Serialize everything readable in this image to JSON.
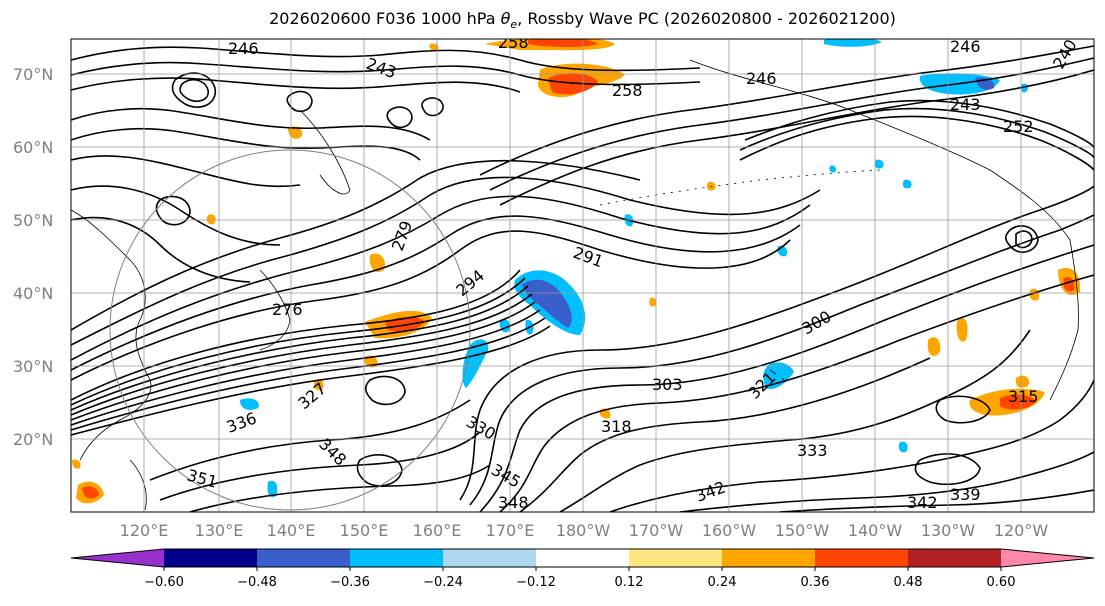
{
  "title": {
    "run": "2026020600",
    "forecast_hour": "F036",
    "level": "1000 hPa",
    "variable_symbol": "θ",
    "variable_subscript": "e",
    "analysis": ", Rossby Wave PC (2026020800 - 2026021200)"
  },
  "map": {
    "lat_labels": [
      "70°N",
      "60°N",
      "50°N",
      "40°N",
      "30°N",
      "20°N"
    ],
    "lon_labels": [
      "120°E",
      "130°E",
      "140°E",
      "150°E",
      "160°E",
      "170°E",
      "180°W",
      "170°W",
      "160°W",
      "150°W",
      "140°W",
      "130°W",
      "120°W"
    ],
    "contour_labels": [
      {
        "text": "246",
        "name": "contour-label-246-a"
      },
      {
        "text": "258",
        "name": "contour-label-258-a"
      },
      {
        "text": "246",
        "name": "contour-label-246-b"
      },
      {
        "text": "240",
        "name": "contour-label-240"
      },
      {
        "text": "243",
        "name": "contour-label-243-a"
      },
      {
        "text": "246",
        "name": "contour-label-246-c"
      },
      {
        "text": "258",
        "name": "contour-label-258-b"
      },
      {
        "text": "243",
        "name": "contour-label-243-b"
      },
      {
        "text": "252",
        "name": "contour-label-252"
      },
      {
        "text": "279",
        "name": "contour-label-279"
      },
      {
        "text": "291",
        "name": "contour-label-291"
      },
      {
        "text": "294",
        "name": "contour-label-294"
      },
      {
        "text": "276",
        "name": "contour-label-276"
      },
      {
        "text": "300",
        "name": "contour-label-300"
      },
      {
        "text": "303",
        "name": "contour-label-303"
      },
      {
        "text": "330",
        "name": "contour-label-330"
      },
      {
        "text": "318",
        "name": "contour-label-318"
      },
      {
        "text": "321",
        "name": "contour-label-321"
      },
      {
        "text": "333",
        "name": "contour-label-333"
      },
      {
        "text": "348",
        "name": "contour-label-348-a"
      },
      {
        "text": "351",
        "name": "contour-label-351"
      },
      {
        "text": "345",
        "name": "contour-label-345"
      },
      {
        "text": "348",
        "name": "contour-label-348-b"
      },
      {
        "text": "342",
        "name": "contour-label-342-a"
      },
      {
        "text": "342",
        "name": "contour-label-342-b"
      },
      {
        "text": "339",
        "name": "contour-label-339"
      },
      {
        "text": "315",
        "name": "contour-label-315"
      },
      {
        "text": "336",
        "name": "contour-label-336"
      },
      {
        "text": "327",
        "name": "contour-label-327"
      }
    ],
    "colors": {
      "contour": "#000000",
      "gridline": "#9a9a9a",
      "coastline": "#000000"
    }
  },
  "colorbar": {
    "ticks": [
      "−0.60",
      "−0.48",
      "−0.36",
      "−0.24",
      "−0.12",
      "0.12",
      "0.24",
      "0.36",
      "0.48",
      "0.60"
    ],
    "colors": [
      "#9932cc",
      "#00008b",
      "#3a5fcd",
      "#00bfff",
      "#add8f0",
      "#ffffff",
      "#ffe680",
      "#ffa500",
      "#ff4500",
      "#b22222",
      "#ff88aa"
    ]
  }
}
